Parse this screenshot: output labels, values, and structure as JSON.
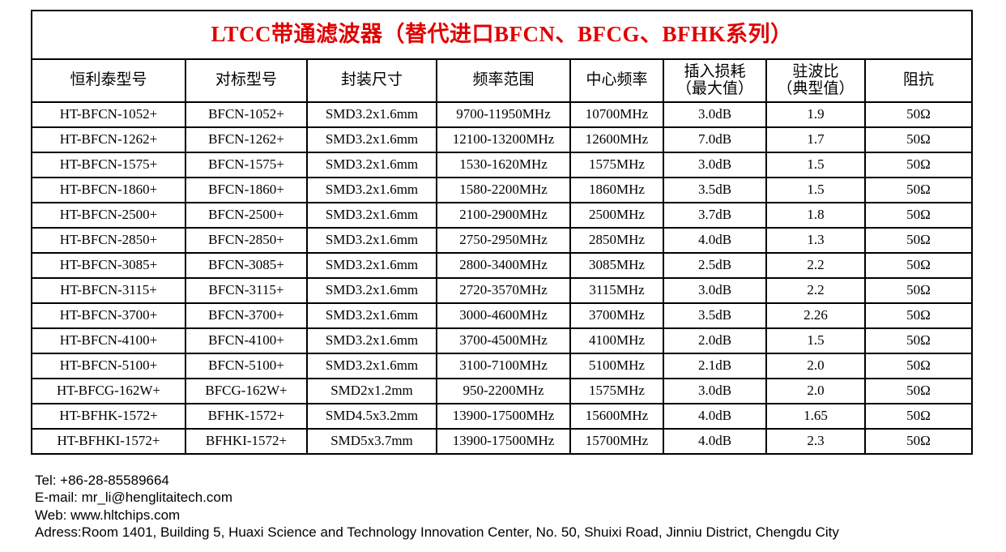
{
  "table": {
    "title": "LTCC带通滤波器（替代进口BFCN、BFCG、BFHK系列）",
    "header": [
      "恒利泰型号",
      "对标型号",
      "封装尺寸",
      "频率范围",
      "中心频率",
      "插入损耗\n（最大值）",
      "驻波比\n（典型值）",
      "阻抗"
    ],
    "rows": [
      [
        "HT-BFCN-1052+",
        "BFCN-1052+",
        "SMD3.2x1.6mm",
        "9700-11950MHz",
        "10700MHz",
        "3.0dB",
        "1.9",
        "50Ω"
      ],
      [
        "HT-BFCN-1262+",
        "BFCN-1262+",
        "SMD3.2x1.6mm",
        "12100-13200MHz",
        "12600MHz",
        "7.0dB",
        "1.7",
        "50Ω"
      ],
      [
        "HT-BFCN-1575+",
        "BFCN-1575+",
        "SMD3.2x1.6mm",
        "1530-1620MHz",
        "1575MHz",
        "3.0dB",
        "1.5",
        "50Ω"
      ],
      [
        "HT-BFCN-1860+",
        "BFCN-1860+",
        "SMD3.2x1.6mm",
        "1580-2200MHz",
        "1860MHz",
        "3.5dB",
        "1.5",
        "50Ω"
      ],
      [
        "HT-BFCN-2500+",
        "BFCN-2500+",
        "SMD3.2x1.6mm",
        "2100-2900MHz",
        "2500MHz",
        "3.7dB",
        "1.8",
        "50Ω"
      ],
      [
        "HT-BFCN-2850+",
        "BFCN-2850+",
        "SMD3.2x1.6mm",
        "2750-2950MHz",
        "2850MHz",
        "4.0dB",
        "1.3",
        "50Ω"
      ],
      [
        "HT-BFCN-3085+",
        "BFCN-3085+",
        "SMD3.2x1.6mm",
        "2800-3400MHz",
        "3085MHz",
        "2.5dB",
        "2.2",
        "50Ω"
      ],
      [
        "HT-BFCN-3115+",
        "BFCN-3115+",
        "SMD3.2x1.6mm",
        "2720-3570MHz",
        "3115MHz",
        "3.0dB",
        "2.2",
        "50Ω"
      ],
      [
        "HT-BFCN-3700+",
        "BFCN-3700+",
        "SMD3.2x1.6mm",
        "3000-4600MHz",
        "3700MHz",
        "3.5dB",
        "2.26",
        "50Ω"
      ],
      [
        "HT-BFCN-4100+",
        "BFCN-4100+",
        "SMD3.2x1.6mm",
        "3700-4500MHz",
        "4100MHz",
        "2.0dB",
        "1.5",
        "50Ω"
      ],
      [
        "HT-BFCN-5100+",
        "BFCN-5100+",
        "SMD3.2x1.6mm",
        "3100-7100MHz",
        "5100MHz",
        "2.1dB",
        "2.0",
        "50Ω"
      ],
      [
        "HT-BFCG-162W+",
        "BFCG-162W+",
        "SMD2x1.2mm",
        "950-2200MHz",
        "1575MHz",
        "3.0dB",
        "2.0",
        "50Ω"
      ],
      [
        "HT-BFHK-1572+",
        "BFHK-1572+",
        "SMD4.5x3.2mm",
        "13900-17500MHz",
        "15600MHz",
        "4.0dB",
        "1.65",
        "50Ω"
      ],
      [
        "HT-BFHKI-1572+",
        "BFHKI-1572+",
        "SMD5x3.7mm",
        "13900-17500MHz",
        "15700MHz",
        "4.0dB",
        "2.3",
        "50Ω"
      ]
    ]
  },
  "footer": [
    "Tel: +86-28-85589664",
    "E-mail: mr_li@henglitaitech.com",
    "Web: www.hltchips.com",
    "Adress:Room 1401, Building 5, Huaxi Science and Technology Innovation Center, No. 50, Shuixi Road, Jinniu District, Chengdu City"
  ]
}
